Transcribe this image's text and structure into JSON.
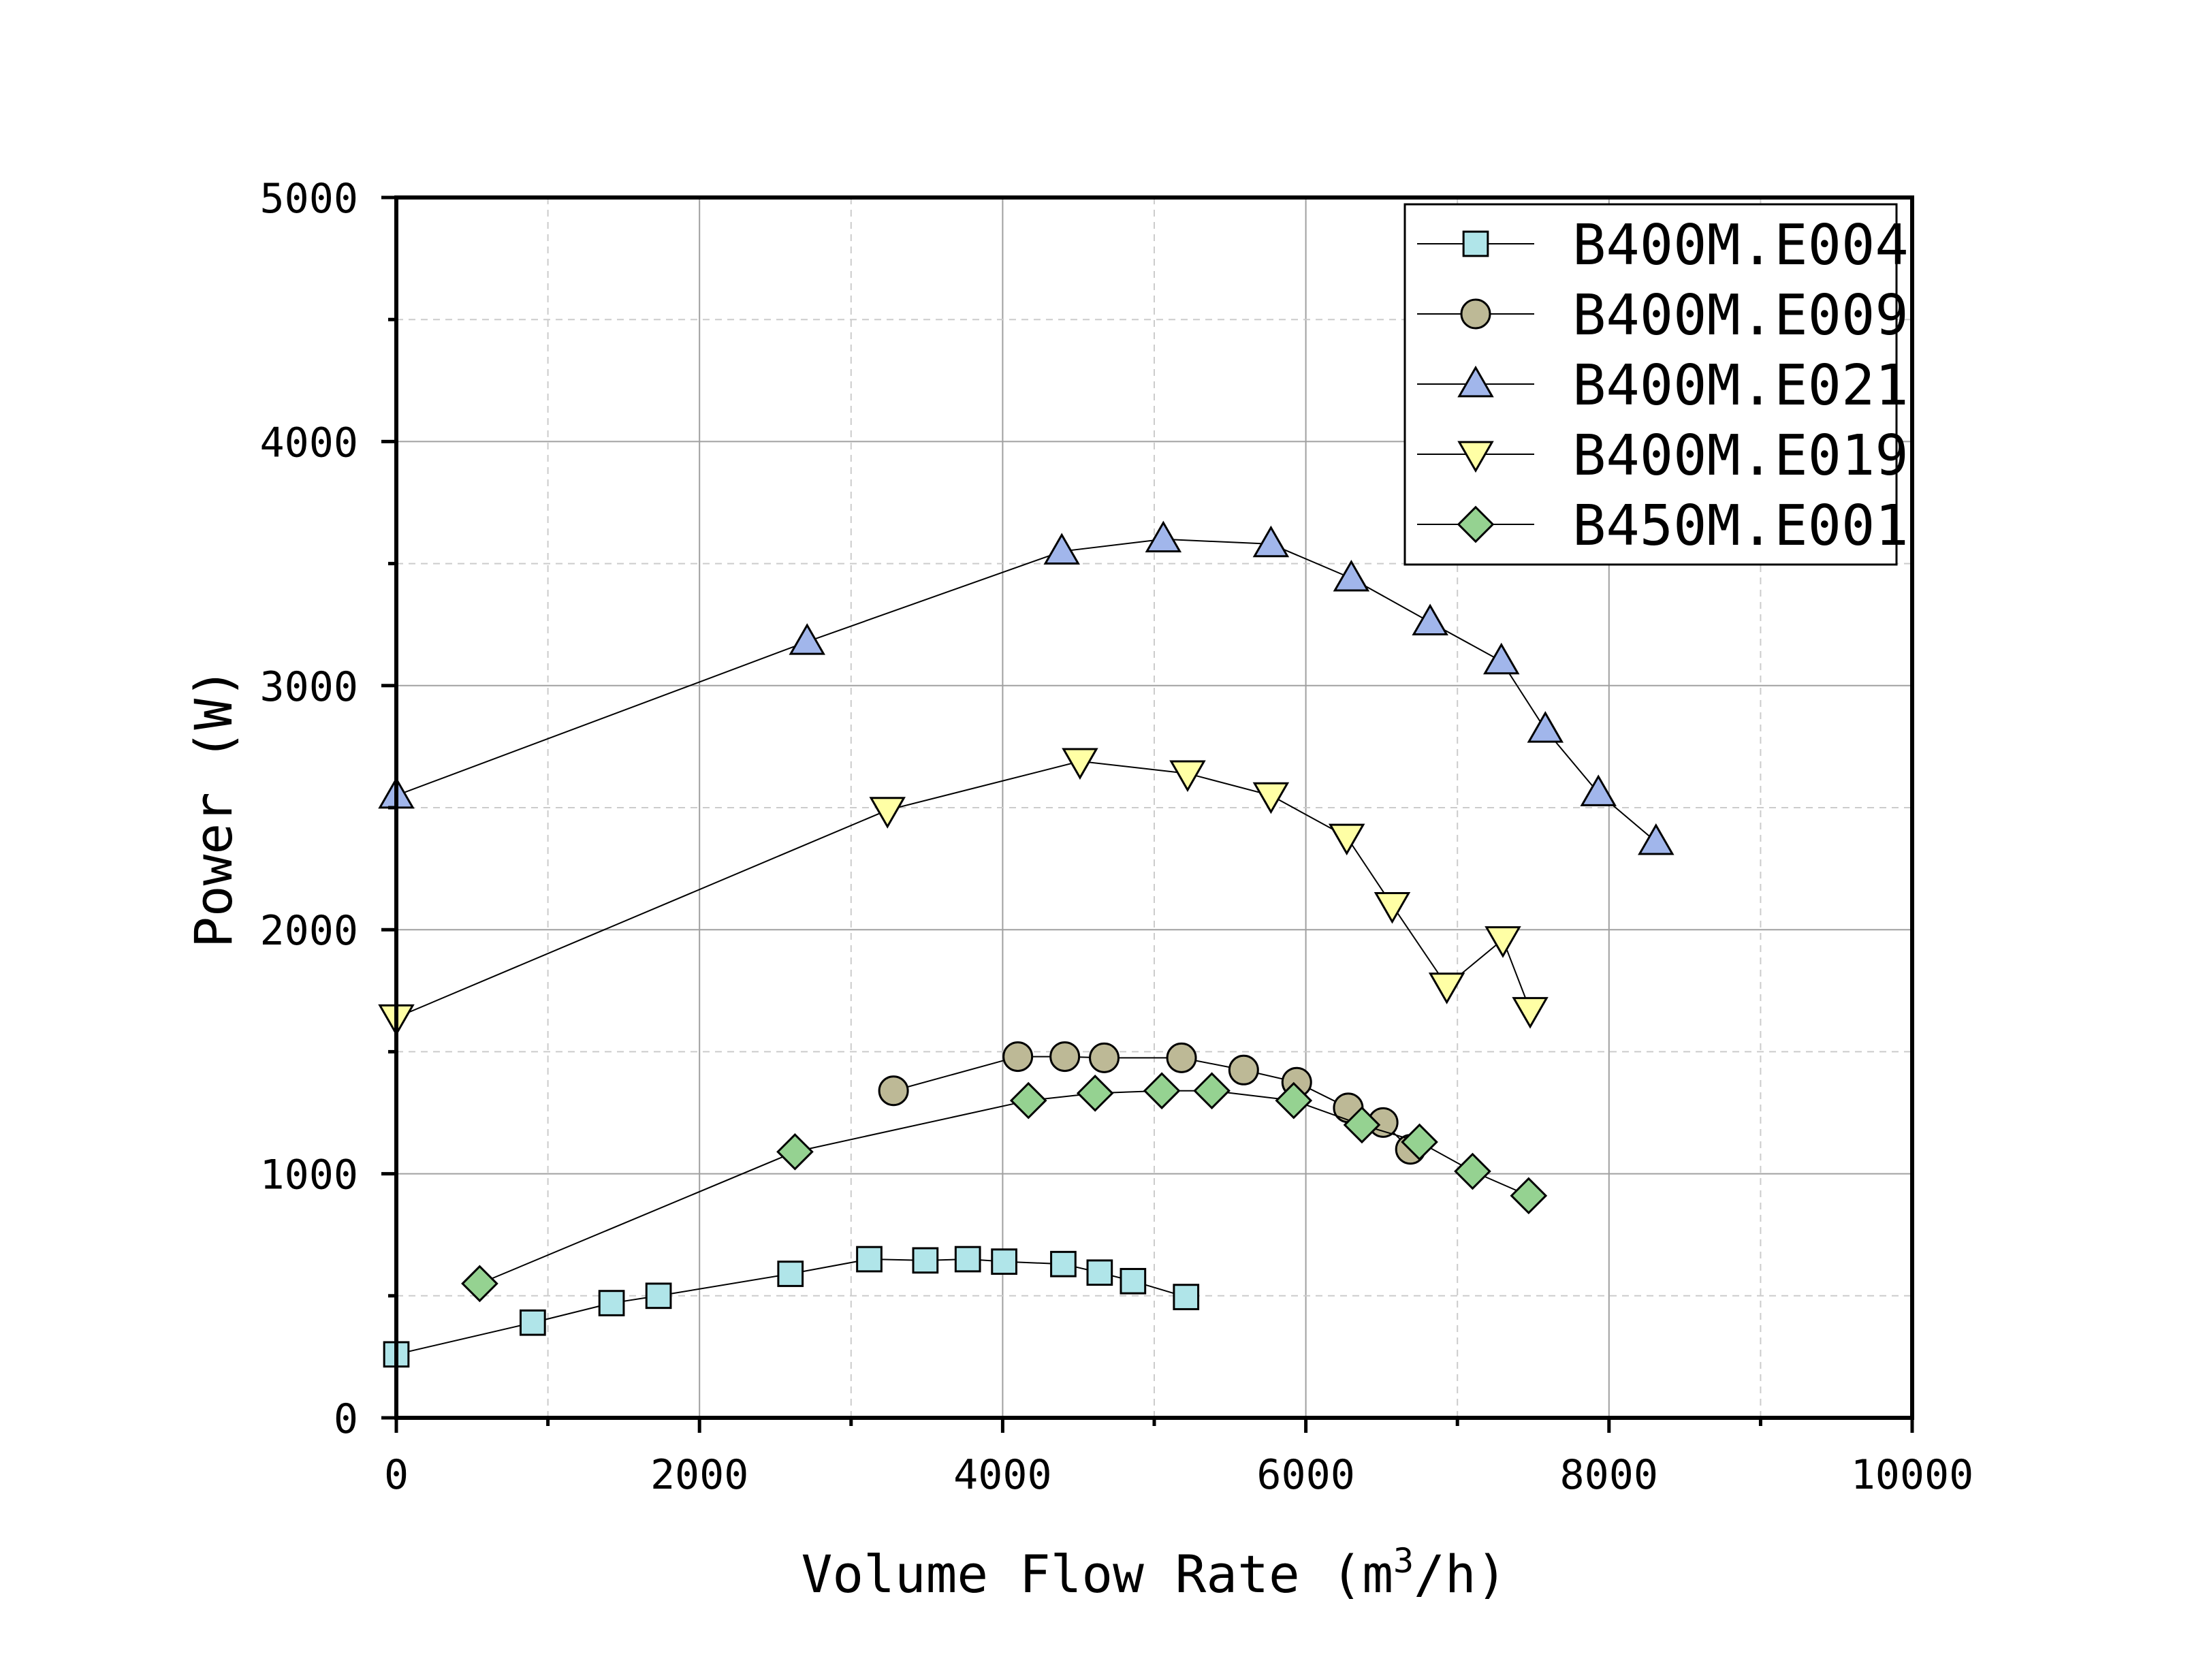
{
  "chart_data": {
    "type": "scatter",
    "xlabel": "Volume Flow Rate (m",
    "xlabel_sup": "3",
    "xlabel_end": "/h)",
    "ylabel": "Power (W)",
    "xlim": [
      0,
      10000
    ],
    "ylim": [
      0,
      5000
    ],
    "x_ticks": [
      0,
      2000,
      4000,
      6000,
      8000,
      10000
    ],
    "y_ticks": [
      0,
      1000,
      2000,
      3000,
      4000,
      5000
    ],
    "x_tick_labels": [
      "0",
      "2000",
      "4000",
      "6000",
      "8000",
      "10000"
    ],
    "y_tick_labels": [
      "0",
      "1000",
      "2000",
      "3000",
      "4000",
      "5000"
    ],
    "x_minor_step": 1000,
    "y_minor_step": 500,
    "grid": true,
    "legend_position": "top-right",
    "lines_connect_points": true,
    "series": [
      {
        "name": "B400M.E004",
        "marker": "square",
        "color": "#B0E5E9",
        "x": [
          0,
          900,
          1420,
          1730,
          2600,
          3120,
          3490,
          3770,
          4010,
          4400,
          4640,
          4860,
          5210
        ],
        "y": [
          260,
          390,
          470,
          500,
          590,
          650,
          645,
          650,
          640,
          630,
          595,
          560,
          495
        ]
      },
      {
        "name": "B400M.E009",
        "marker": "circle",
        "color": "#BDB996",
        "x": [
          3280,
          4100,
          4410,
          4670,
          5180,
          5590,
          5940,
          6280,
          6510,
          6690
        ],
        "y": [
          1340,
          1480,
          1480,
          1475,
          1475,
          1425,
          1375,
          1270,
          1210,
          1100
        ]
      },
      {
        "name": "B400M.E021",
        "marker": "triangle-up",
        "color": "#A1B6EB",
        "x": [
          0,
          2710,
          4390,
          5060,
          5770,
          6300,
          6820,
          7290,
          7580,
          7930,
          8310
        ],
        "y": [
          2550,
          3180,
          3550,
          3600,
          3580,
          3440,
          3260,
          3100,
          2820,
          2560,
          2360
        ]
      },
      {
        "name": "B400M.E019",
        "marker": "triangle-down",
        "color": "#FFFFA5",
        "x": [
          0,
          3240,
          4510,
          5220,
          5770,
          6270,
          6570,
          6930,
          7300,
          7480
        ],
        "y": [
          1640,
          2490,
          2690,
          2640,
          2550,
          2380,
          2100,
          1770,
          1960,
          1670
        ]
      },
      {
        "name": "B450M.E001",
        "marker": "diamond",
        "color": "#95D291",
        "x": [
          550,
          2630,
          4170,
          4610,
          5050,
          5380,
          5920,
          6370,
          6750,
          7100,
          7470
        ],
        "y": [
          550,
          1090,
          1300,
          1330,
          1340,
          1340,
          1300,
          1200,
          1130,
          1010,
          910
        ]
      }
    ]
  }
}
